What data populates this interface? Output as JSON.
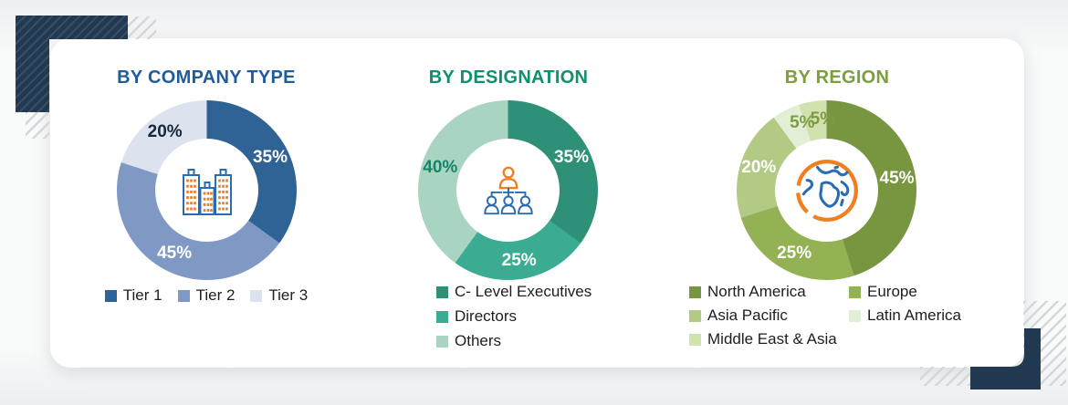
{
  "decor": {
    "corner_navy": "#213a52",
    "hatch_gray": "#d5d8da",
    "card_bg": "#ffffff"
  },
  "icons": {
    "buildings_stroke": "#2a6cb4",
    "buildings_windows": "#e87a28",
    "org_top_person": "#ef7f1f",
    "org_bottom_people": "#2a6cb4",
    "globe_ring": "#ef7f1f",
    "globe_land": "#2a6cb4"
  },
  "chart_data": [
    {
      "type": "pie",
      "donut": true,
      "title": "BY COMPANY TYPE",
      "title_color": "#1f5c99",
      "labels": [
        "Tier 1",
        "Tier 2",
        "Tier 3"
      ],
      "values": [
        35,
        45,
        20
      ],
      "colors": [
        "#2f6395",
        "#8099c4",
        "#dce3ef"
      ],
      "label_colors": [
        "#ffffff",
        "#ffffff",
        "#15273f"
      ],
      "label_radius": 78,
      "legend_position": "bottom-row",
      "center_icon": "buildings-icon",
      "start_angle": 0,
      "direction": "clockwise"
    },
    {
      "type": "pie",
      "donut": true,
      "title": "BY DESIGNATION",
      "title_color": "#10906f",
      "labels": [
        "C- Level Executives",
        "Directors",
        "Others"
      ],
      "values": [
        35,
        25,
        40
      ],
      "colors": [
        "#2e9077",
        "#3bab92",
        "#a9d4c1"
      ],
      "label_colors": [
        "#ffffff",
        "#ffffff",
        "#13866b"
      ],
      "label_radius": 78,
      "legend_position": "bottom-column",
      "center_icon": "org-chart-icon",
      "start_angle": 0,
      "direction": "clockwise"
    },
    {
      "type": "pie",
      "donut": true,
      "title": "BY REGION",
      "title_color": "#7b9f3e",
      "labels": [
        "North America",
        "Europe",
        "Asia Pacific",
        "Latin America",
        "Middle East & Asia"
      ],
      "values": [
        45,
        25,
        20,
        5,
        5
      ],
      "colors": [
        "#77963f",
        "#93b254",
        "#b3ca85",
        "#e3eed6",
        "#d2e2ae"
      ],
      "label_colors": [
        "#ffffff",
        "#ffffff",
        "#ffffff",
        "#7d9a44",
        "#7d9a44"
      ],
      "label_angles": [
        null,
        null,
        null,
        340,
        357
      ],
      "label_radius": 78,
      "legend_position": "bottom-grid-2col",
      "center_icon": "globe-icon",
      "start_angle": 0,
      "direction": "clockwise"
    }
  ]
}
